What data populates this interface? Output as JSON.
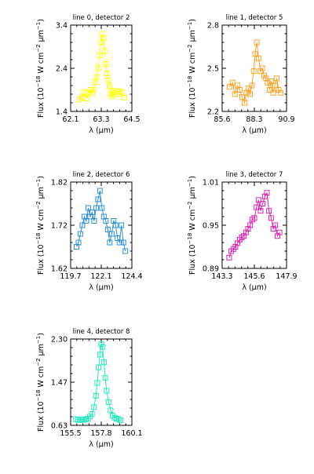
{
  "chart_data": [
    {
      "type": "line",
      "title": "line 0, detector 2",
      "xlabel": "λ (μm)",
      "ylabel": "Flux (10⁻¹⁸ W cm⁻² μm⁻¹)",
      "xlim": [
        62.1,
        64.5
      ],
      "ylim": [
        1.4,
        3.4
      ],
      "xticks": [
        "62.1",
        "63.3",
        "64.5"
      ],
      "yticks": [
        "1.4",
        "2.4",
        "3.4"
      ],
      "color": "#ffff00",
      "marker": "square",
      "series": [
        {
          "x": [
            62.45,
            62.55,
            62.62,
            62.72,
            62.8,
            62.87,
            62.94,
            63.0,
            63.06,
            63.12,
            63.18,
            63.23,
            63.28,
            63.33,
            63.38,
            63.43,
            63.48,
            63.53,
            63.58,
            63.62,
            63.67,
            63.72,
            63.78,
            63.85,
            63.92,
            64.0,
            64.1,
            64.2
          ],
          "y": [
            1.68,
            1.72,
            1.84,
            1.7,
            1.84,
            1.9,
            1.82,
            1.9,
            2.08,
            2.2,
            2.4,
            2.7,
            3.0,
            3.2,
            3.1,
            2.8,
            2.5,
            2.28,
            2.12,
            1.98,
            1.8,
            1.75,
            1.88,
            1.84,
            1.8,
            1.87,
            1.85,
            1.72
          ]
        }
      ]
    },
    {
      "type": "line",
      "title": "line 1, detector 5",
      "xlabel": "λ (μm)",
      "ylabel": "Flux (10⁻¹⁸ W cm⁻² μm⁻¹)",
      "xlim": [
        85.6,
        90.9
      ],
      "ylim": [
        2.2,
        2.8
      ],
      "xticks": [
        "85.6",
        "88.3",
        "90.9"
      ],
      "yticks": [
        "2.2",
        "2.5",
        "2.8"
      ],
      "color": "#ff9f1f",
      "marker": "square",
      "series": [
        {
          "x": [
            86.2,
            86.45,
            86.65,
            86.85,
            87.05,
            87.25,
            87.45,
            87.6,
            87.75,
            87.9,
            88.05,
            88.2,
            88.32,
            88.45,
            88.6,
            88.75,
            88.9,
            89.05,
            89.2,
            89.35,
            89.5,
            89.65,
            89.8,
            89.95,
            90.1,
            90.25,
            90.4
          ],
          "y": [
            2.37,
            2.4,
            2.32,
            2.38,
            2.35,
            2.3,
            2.26,
            2.33,
            2.36,
            2.32,
            2.38,
            2.48,
            2.6,
            2.68,
            2.57,
            2.48,
            2.5,
            2.45,
            2.43,
            2.4,
            2.35,
            2.41,
            2.33,
            2.38,
            2.43,
            2.35,
            2.33
          ]
        }
      ]
    },
    {
      "type": "line",
      "title": "line 2, detector 6",
      "xlabel": "λ (μm)",
      "ylabel": "Flux (10⁻¹⁸ W cm⁻² μm⁻¹)",
      "xlim": [
        119.7,
        124.4
      ],
      "ylim": [
        1.62,
        1.82
      ],
      "xticks": [
        "119.7",
        "122.1",
        "124.4"
      ],
      "yticks": [
        "1.62",
        "1.72",
        "1.82"
      ],
      "color": "#2a8fd8",
      "marker": "square",
      "series": [
        {
          "x": [
            120.15,
            120.3,
            120.45,
            120.6,
            120.75,
            120.9,
            121.05,
            121.2,
            121.35,
            121.5,
            121.65,
            121.8,
            121.95,
            122.1,
            122.25,
            122.4,
            122.55,
            122.7,
            122.85,
            123.0,
            123.15,
            123.3,
            123.45,
            123.6,
            123.75,
            123.9
          ],
          "y": [
            1.67,
            1.68,
            1.7,
            1.72,
            1.74,
            1.73,
            1.76,
            1.74,
            1.75,
            1.73,
            1.76,
            1.78,
            1.8,
            1.76,
            1.74,
            1.73,
            1.71,
            1.68,
            1.7,
            1.73,
            1.72,
            1.69,
            1.68,
            1.72,
            1.68,
            1.66
          ]
        }
      ]
    },
    {
      "type": "line",
      "title": "line 3, detector 7",
      "xlabel": "λ (μm)",
      "ylabel": "Flux (10⁻¹⁸ W cm⁻² μm⁻¹)",
      "xlim": [
        143.3,
        147.9
      ],
      "ylim": [
        0.89,
        1.01
      ],
      "xticks": [
        "143.3",
        "145.6",
        "147.9"
      ],
      "yticks": [
        "0.89",
        "0.95",
        "1.01"
      ],
      "color": "#e020b0",
      "marker": "square",
      "series": [
        {
          "x": [
            143.8,
            143.95,
            144.1,
            144.25,
            144.4,
            144.55,
            144.7,
            144.85,
            145.0,
            145.15,
            145.3,
            145.45,
            145.6,
            145.75,
            145.9,
            146.05,
            146.2,
            146.35,
            146.5,
            146.65,
            146.8,
            146.95,
            147.1,
            147.25,
            147.4
          ],
          "y": [
            0.905,
            0.914,
            0.917,
            0.92,
            0.925,
            0.93,
            0.933,
            0.935,
            0.94,
            0.945,
            0.95,
            0.958,
            0.96,
            0.975,
            0.985,
            0.97,
            0.98,
            0.99,
            0.995,
            0.97,
            0.96,
            0.945,
            0.95,
            0.935,
            0.94
          ]
        }
      ]
    },
    {
      "type": "line",
      "title": "line 4, detector 8",
      "xlabel": "λ (μm)",
      "ylabel": "Flux (10⁻¹⁸ W cm⁻² μm⁻¹)",
      "xlim": [
        155.5,
        160.1
      ],
      "ylim": [
        0.63,
        2.3
      ],
      "xticks": [
        "155.5",
        "157.8",
        "160.1"
      ],
      "yticks": [
        "0.63",
        "1.47",
        "2.30"
      ],
      "color": "#20e8c0",
      "marker": "square",
      "series": [
        {
          "x": [
            155.9,
            156.05,
            156.2,
            156.35,
            156.5,
            156.65,
            156.8,
            156.95,
            157.1,
            157.25,
            157.4,
            157.5,
            157.6,
            157.7,
            157.8,
            157.9,
            158.0,
            158.1,
            158.2,
            158.35,
            158.5,
            158.65,
            158.8,
            158.95,
            159.1,
            159.25
          ],
          "y": [
            0.75,
            0.74,
            0.73,
            0.74,
            0.74,
            0.75,
            0.76,
            0.8,
            0.85,
            0.98,
            1.2,
            1.45,
            1.75,
            2.0,
            2.2,
            2.15,
            1.85,
            1.55,
            1.3,
            1.08,
            0.92,
            0.82,
            0.78,
            0.76,
            0.75,
            0.73
          ]
        }
      ]
    }
  ]
}
